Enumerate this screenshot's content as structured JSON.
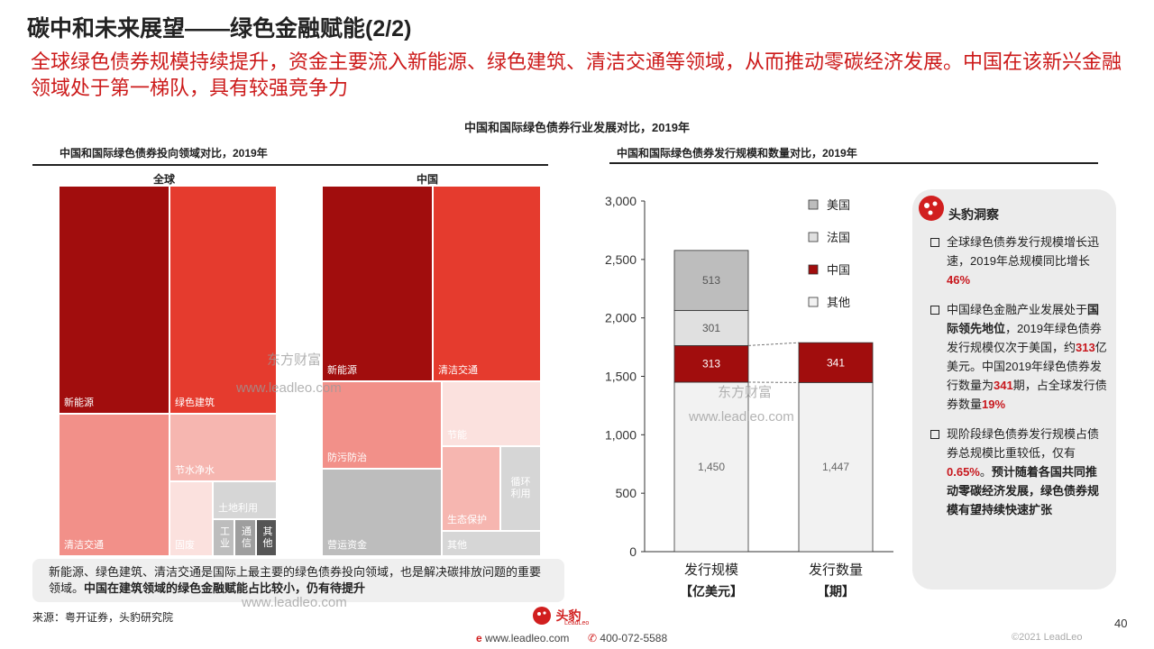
{
  "header": {
    "title": "碳中和未来展望——绿色金融赋能(2/2)",
    "subtitle": "全球绿色债券规模持续提升，资金主要流入新能源、绿色建筑、清洁交通等领域，从而推动零碳经济发展。中国在该新兴金融领域处于第一梯队，具有较强竞争力",
    "main_chart_title": "中国和国际绿色债券行业发展对比，2019年"
  },
  "left_panel": {
    "title": "中国和国际绿色债券投向领域对比，2019年",
    "global": {
      "label": "全球",
      "cells": [
        "新能源",
        "绿色建筑",
        "清洁交通",
        "节水净水",
        "固废",
        "土地利用",
        "工业",
        "通信",
        "其他"
      ]
    },
    "china": {
      "label": "中国",
      "cells": [
        "新能源",
        "清洁交通",
        "防污防治",
        "节能",
        "营运资金",
        "生态保护",
        "循环利用",
        "其他"
      ]
    },
    "note_normal": "新能源、绿色建筑、清洁交通是国际上最主要的绿色债券投向领域，也是解决碳排放问题的重要领域。",
    "note_bold": "中国在建筑领域的绿色金融赋能占比较小，仍有待提升",
    "source": "来源：粤开证券，头豹研究院"
  },
  "right_panel": {
    "title": "中国和国际绿色债券发行规模和数量对比，2019年"
  },
  "chart_data": {
    "type": "bar",
    "stacked": true,
    "categories": [
      "发行规模",
      "发行数量"
    ],
    "category_units": [
      "【亿美元】",
      "【期】"
    ],
    "ylim": [
      0,
      3000
    ],
    "yticks": [
      "0",
      "500",
      "1,000",
      "1,500",
      "2,000",
      "2,500",
      "3,000"
    ],
    "series": [
      {
        "name": "其他",
        "values": [
          1450,
          1447
        ],
        "labels": [
          "1,450",
          "1,447"
        ],
        "color": "#f2f2f2",
        "label_color": "#666666"
      },
      {
        "name": "中国",
        "values": [
          313,
          341
        ],
        "labels": [
          "313",
          "341"
        ],
        "color": "#a10d0d",
        "label_color": "#ffffff"
      },
      {
        "name": "法国",
        "values": [
          301,
          null
        ],
        "labels": [
          "301",
          ""
        ],
        "color": "#e0e0e0",
        "label_color": "#555555"
      },
      {
        "name": "美国",
        "values": [
          513,
          null
        ],
        "labels": [
          "513",
          ""
        ],
        "color": "#bdbdbd",
        "label_color": "#555555"
      }
    ],
    "legend": [
      "美国",
      "法国",
      "中国",
      "其他"
    ],
    "legend_position": "top-right"
  },
  "insight": {
    "title": "头豹洞察",
    "b1_text": "全球绿色债券发行规模增长迅速，2019年总规模同比增长",
    "b1_red": "46%",
    "b2_text1": "中国绿色金融产业发展处于",
    "b2_bold": "国际领先地位",
    "b2_text2": "，2019年绿色债券发行规模仅次于美国，约",
    "b2_red1": "313",
    "b2_text3": "亿美元。中国2019年绿色债券发行数量为",
    "b2_red2": "341",
    "b2_text4": "期，占全球发行债券数量",
    "b2_red3": "19%",
    "b3_text1": "现阶段绿色债券发行规模占债券总规模比重较低，仅有",
    "b3_red": "0.65%",
    "b3_text2": "。",
    "b3_bold": "预计随着各国共同推动零碳经济发展，绿色债券规模有望持续快速扩张"
  },
  "watermarks": {
    "cn": "东方财富",
    "url": "www.leadleo.com"
  },
  "footer": {
    "logo_text": "头豹",
    "logo_sub": "LeadLeo",
    "website": "www.leadleo.com",
    "phone": "400-072-5588",
    "page_number": "40",
    "copyright": "©2021 LeadLeo"
  },
  "colors": {
    "accent_red": "#cc1a1a",
    "dark_red": "#a10d0d",
    "red": "#e53b2e",
    "salmon": "#f29089",
    "pink": "#f6b6b0",
    "light_pink": "#fbe1de",
    "grey": "#bdbdbd"
  }
}
